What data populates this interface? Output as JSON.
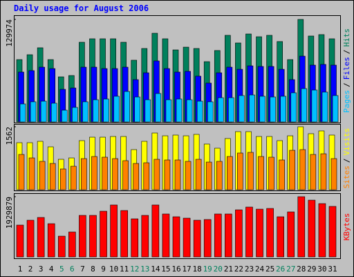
{
  "chart_data": [
    {
      "type": "bar",
      "title": "Daily usage for August 2006",
      "ylim": [
        0,
        129974
      ],
      "yticks": [
        129974
      ],
      "legend_separator": "/",
      "series": [
        {
          "name": "Hits",
          "color": "#00805c",
          "values": [
            79000,
            85200,
            94000,
            79000,
            57100,
            58800,
            101000,
            105400,
            105400,
            105400,
            101000,
            78200,
            93100,
            112400,
            105400,
            91300,
            94800,
            93100,
            76400,
            90500,
            109800,
            100100,
            111500,
            108000,
            109800,
            101900,
            79000,
            129974,
            108900,
            110700,
            105400
          ]
        },
        {
          "name": "Files",
          "color": "#0000ff",
          "values": [
            63200,
            65000,
            69400,
            67600,
            41300,
            43000,
            69400,
            69400,
            67600,
            67600,
            69400,
            53600,
            62300,
            77300,
            67600,
            63200,
            64100,
            58000,
            49200,
            62300,
            69400,
            66700,
            71100,
            70300,
            70300,
            66700,
            53600,
            83400,
            72000,
            72900,
            72000
          ]
        },
        {
          "name": "Pages",
          "color": "#00c0ff",
          "values": [
            22800,
            25500,
            26300,
            23700,
            14900,
            18400,
            25500,
            28100,
            29000,
            32500,
            38600,
            31600,
            28100,
            36000,
            28100,
            29000,
            28100,
            26300,
            25500,
            30700,
            30700,
            33400,
            34200,
            32500,
            31600,
            32500,
            36900,
            42200,
            40400,
            37800,
            33400
          ]
        }
      ]
    },
    {
      "type": "bar",
      "ylim": [
        0,
        1562
      ],
      "yticks": [
        1562
      ],
      "legend_separator": "/",
      "series": [
        {
          "name": "Visits",
          "color": "#ffff00",
          "values": [
            1167,
            1167,
            1201,
            1064,
            755,
            789,
            1218,
            1304,
            1304,
            1321,
            1321,
            995,
            1201,
            1407,
            1338,
            1356,
            1338,
            1373,
            1133,
            1030,
            1270,
            1441,
            1441,
            1321,
            1321,
            1218,
            1338,
            1562,
            1390,
            1459,
            1356
          ]
        },
        {
          "name": "Sites",
          "color": "#ff8000",
          "values": [
            875,
            789,
            704,
            652,
            515,
            583,
            772,
            824,
            807,
            772,
            721,
            652,
            669,
            755,
            738,
            738,
            704,
            755,
            686,
            704,
            824,
            910,
            927,
            824,
            807,
            738,
            978,
            995,
            875,
            892,
            772
          ]
        }
      ]
    },
    {
      "type": "bar",
      "ylim": [
        0,
        1929879
      ],
      "yticks": [
        1929879
      ],
      "categories": [
        "1",
        "2",
        "3",
        "4",
        "5",
        "6",
        "7",
        "8",
        "9",
        "10",
        "11",
        "12",
        "13",
        "14",
        "15",
        "16",
        "17",
        "18",
        "19",
        "20",
        "21",
        "22",
        "23",
        "24",
        "25",
        "26",
        "27",
        "28",
        "29",
        "30",
        "31"
      ],
      "category_colors": [
        "#000000",
        "#000000",
        "#000000",
        "#000000",
        "#00805c",
        "#00805c",
        "#000000",
        "#000000",
        "#000000",
        "#000000",
        "#000000",
        "#00805c",
        "#00805c",
        "#000000",
        "#000000",
        "#000000",
        "#000000",
        "#000000",
        "#00805c",
        "#00805c",
        "#000000",
        "#000000",
        "#000000",
        "#000000",
        "#000000",
        "#00805c",
        "#00805c",
        "#000000",
        "#000000",
        "#000000",
        "#000000"
      ],
      "series": [
        {
          "name": "KBytes",
          "color": "#ff0000",
          "values": [
            1020000,
            1175600,
            1264400,
            1064700,
            665500,
            798600,
            1330900,
            1330900,
            1464000,
            1663700,
            1486200,
            1220000,
            1330900,
            1663700,
            1375300,
            1286600,
            1242200,
            1175600,
            1197800,
            1375300,
            1375300,
            1508400,
            1597100,
            1530600,
            1552700,
            1286600,
            1441800,
            1929879,
            1818900,
            1708000,
            1619300
          ]
        }
      ]
    }
  ]
}
